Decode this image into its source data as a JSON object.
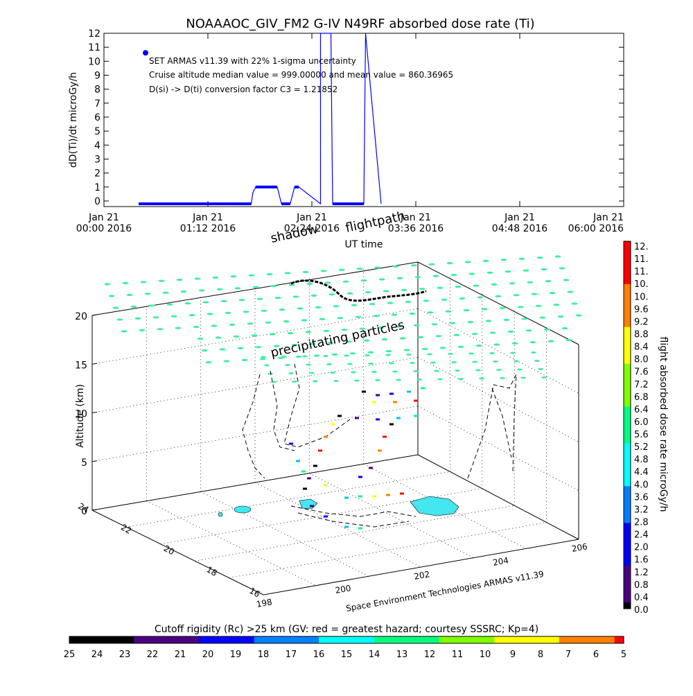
{
  "window": {
    "title": "NOAAAOC_GIV_FM2 G-IV   N49RF  absorbed dose rate (Ti)"
  },
  "chart_data": [
    {
      "id": "dose-rate-timeseries",
      "type": "line",
      "title": "NOAAAOC_GIV_FM2 G-IV   N49RF  absorbed dose rate (Ti)",
      "xlabel": "UT time",
      "ylabel": "dD(Ti)/dt microGy/h",
      "xlim_hours": [
        0,
        6
      ],
      "ylim": [
        -0.4,
        12
      ],
      "x_tick_labels": [
        [
          "Jan 21",
          "00:00 2016"
        ],
        [
          "Jan 21",
          "01:12 2016"
        ],
        [
          "Jan 21",
          "02:24 2016"
        ],
        [
          "Jan 21",
          "03:36 2016"
        ],
        [
          "Jan 21",
          "04:48 2016"
        ],
        [
          "Jan 21",
          "06:00 2016"
        ]
      ],
      "y_ticks": [
        0,
        1,
        2,
        3,
        4,
        5,
        6,
        7,
        8,
        9,
        10,
        11,
        12
      ],
      "annotations": [
        "SET ARMAS v11.39 with 22% 1-sigma uncertainty",
        "Cruise altitude median value = 999.00000 and mean value = 860.36965",
        "D(si) -> D(ti) conversion factor C3 = 1.21852"
      ],
      "legend_marker_value": 10.6,
      "series": [
        {
          "color": "#0000ff",
          "x_hours": [
            0.4,
            1.7,
            1.72,
            1.75,
            2.0,
            2.05,
            2.15,
            2.2,
            2.25,
            2.5,
            2.5,
            2.62,
            2.63,
            2.64,
            3.0,
            3.02,
            3.2
          ],
          "values": [
            -0.2,
            -0.2,
            0.6,
            1.0,
            1.0,
            -0.2,
            -0.2,
            1.0,
            1.0,
            -0.2,
            12,
            12,
            5.5,
            -0.2,
            -0.2,
            12,
            -0.2
          ]
        }
      ],
      "grid": false
    },
    {
      "id": "flight-3d-plot",
      "type": "scatter",
      "title": "",
      "ylabel": "Altitude (km)",
      "xlabel": "",
      "z_ticks": [
        0,
        5,
        10,
        15,
        20
      ],
      "lat_ticks": [
        24,
        22,
        20,
        18,
        16
      ],
      "lon_ticks": [
        198,
        200,
        202,
        204,
        206
      ],
      "annotations": {
        "shadow": "shadow",
        "flightpath": "flightpath",
        "particles": "precipitating particles",
        "credit": "Space Environment Technologies ARMAS v11.39"
      },
      "grid": true
    },
    {
      "id": "dose-colorbar",
      "type": "heatmap",
      "label": "flight absorbed dose rate microGy/h",
      "ticks": [
        "12.",
        "11.",
        "11.",
        "10.",
        "10.",
        "9.6",
        "9.2",
        "8.8",
        "8.4",
        "8.0",
        "7.6",
        "7.2",
        "6.8",
        "6.4",
        "6.0",
        "5.6",
        "5.2",
        "4.8",
        "4.4",
        "4.0",
        "3.6",
        "3.2",
        "2.8",
        "2.4",
        "2.0",
        "1.6",
        "1.2",
        "0.8",
        "0.4",
        "0.0"
      ]
    },
    {
      "id": "rigidity-colorbar",
      "type": "heatmap",
      "label": "Cutoff rigidity (Rc) >25 km (GV: red = greatest hazard; courtesy SSSRC; Kp=4)",
      "ticks": [
        "25",
        "24",
        "23",
        "22",
        "21",
        "20",
        "19",
        "18",
        "17",
        "16",
        "15",
        "14",
        "13",
        "12",
        "11",
        "10",
        "9",
        "8",
        "7",
        "6",
        "5"
      ]
    }
  ],
  "colors": {
    "series": "#0000ff",
    "rigidity_marker": "#3cf0a0",
    "island_fill": "#44e6f0",
    "axis": "#000000"
  }
}
